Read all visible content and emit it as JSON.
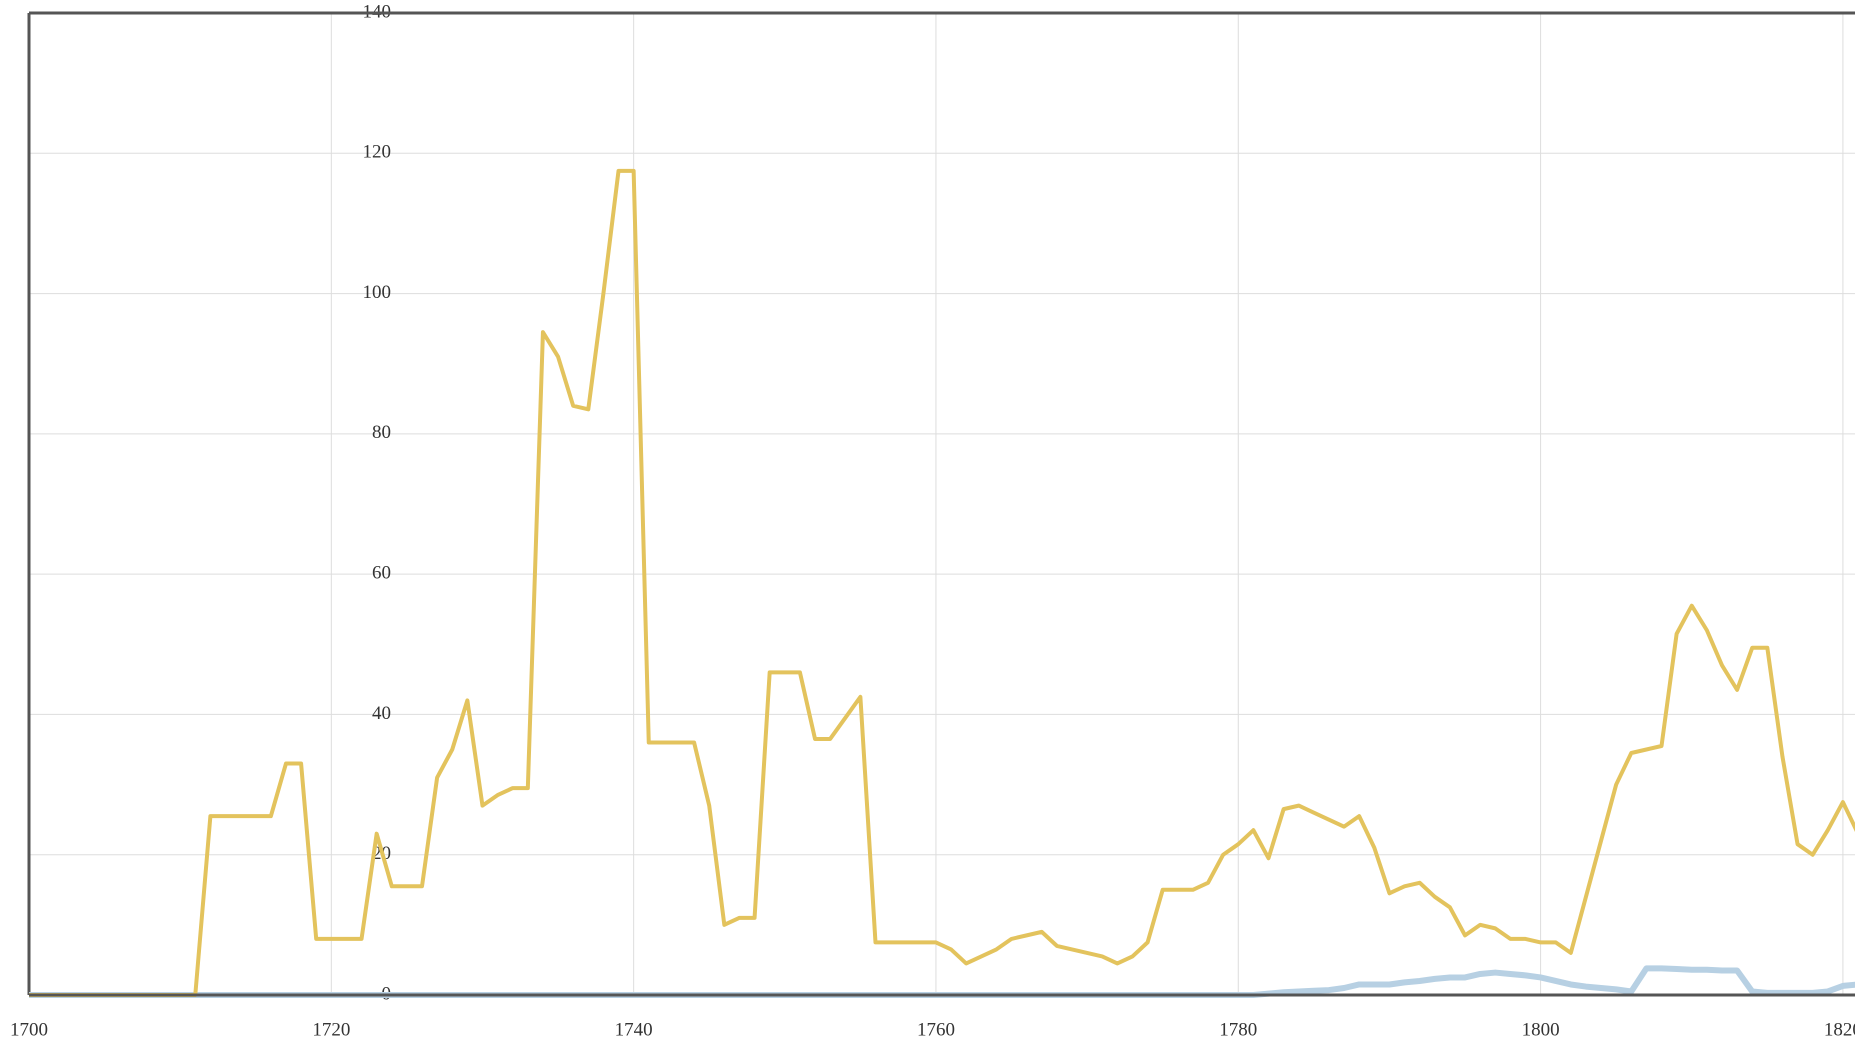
{
  "chart_data": {
    "type": "line",
    "x": [
      1700,
      1701,
      1702,
      1703,
      1704,
      1705,
      1706,
      1707,
      1708,
      1709,
      1710,
      1711,
      1712,
      1713,
      1714,
      1715,
      1716,
      1717,
      1718,
      1719,
      1720,
      1721,
      1722,
      1723,
      1724,
      1725,
      1726,
      1727,
      1728,
      1729,
      1730,
      1731,
      1732,
      1733,
      1734,
      1735,
      1736,
      1737,
      1738,
      1739,
      1740,
      1741,
      1742,
      1743,
      1744,
      1745,
      1746,
      1747,
      1748,
      1749,
      1750,
      1751,
      1752,
      1753,
      1754,
      1755,
      1756,
      1757,
      1758,
      1759,
      1760,
      1761,
      1762,
      1763,
      1764,
      1765,
      1766,
      1767,
      1768,
      1769,
      1770,
      1771,
      1772,
      1773,
      1774,
      1775,
      1776,
      1777,
      1778,
      1779,
      1780,
      1781,
      1782,
      1783,
      1784,
      1785,
      1786,
      1787,
      1788,
      1789,
      1790,
      1791,
      1792,
      1793,
      1794,
      1795,
      1796,
      1797,
      1798,
      1799,
      1800,
      1801,
      1802,
      1803,
      1804,
      1805,
      1806,
      1807,
      1808,
      1809,
      1810,
      1811,
      1812,
      1813,
      1814,
      1815,
      1816,
      1817,
      1818,
      1819,
      1820,
      1821
    ],
    "series": [
      {
        "color": "#e3c35d",
        "values": [
          0,
          0,
          0,
          0,
          0,
          0,
          0,
          0,
          0,
          0,
          0,
          0,
          25.5,
          25.5,
          25.5,
          25.5,
          25.5,
          33,
          33,
          8,
          8,
          8,
          8,
          23,
          15.5,
          15.5,
          15.5,
          31,
          35,
          42,
          27,
          28.5,
          29.5,
          29.5,
          94.5,
          91,
          84,
          83.5,
          100,
          117.5,
          117.5,
          36,
          36,
          36,
          36,
          27,
          10,
          11,
          11,
          46,
          46,
          46,
          36.5,
          36.5,
          39.5,
          42.5,
          7.5,
          7.5,
          7.5,
          7.5,
          7.5,
          6.5,
          4.5,
          5.5,
          6.5,
          8,
          8.5,
          9,
          7,
          6.5,
          6,
          5.5,
          4.5,
          5.5,
          7.5,
          15,
          15,
          15,
          16,
          20,
          21.5,
          23.5,
          19.5,
          26.5,
          27,
          26,
          25,
          24,
          25.5,
          21,
          14.5,
          15.5,
          16,
          14,
          12.5,
          8.5,
          10,
          9.5,
          8,
          8,
          7.5,
          7.5,
          6,
          14,
          22,
          30,
          34.5,
          35,
          35.5,
          51.5,
          55.5,
          52,
          47,
          43.5,
          49.5,
          49.5,
          34,
          21.5,
          20,
          23.5,
          27.5,
          23
        ]
      },
      {
        "color": "#b7d0e3",
        "values": [
          0,
          0,
          0,
          0,
          0,
          0,
          0,
          0,
          0,
          0,
          0,
          0,
          0,
          0,
          0,
          0,
          0,
          0,
          0,
          0,
          0,
          0,
          0,
          0,
          0,
          0,
          0,
          0,
          0,
          0,
          0,
          0,
          0,
          0,
          0,
          0,
          0,
          0,
          0,
          0,
          0,
          0,
          0,
          0,
          0,
          0,
          0,
          0,
          0,
          0,
          0,
          0,
          0,
          0,
          0,
          0,
          0,
          0,
          0,
          0,
          0,
          0,
          0,
          0,
          0,
          0,
          0,
          0,
          0,
          0,
          0,
          0,
          0,
          0,
          0,
          0,
          0,
          0,
          0,
          0,
          0,
          0,
          0.2,
          0.4,
          0.5,
          0.6,
          0.7,
          1,
          1.5,
          1.5,
          1.5,
          1.8,
          2,
          2.3,
          2.5,
          2.5,
          3,
          3.2,
          3,
          2.8,
          2.5,
          2,
          1.5,
          1.2,
          1,
          0.8,
          0.5,
          3.8,
          3.8,
          3.7,
          3.6,
          3.6,
          3.5,
          3.5,
          0.5,
          0.3,
          0.3,
          0.3,
          0.3,
          0.5,
          1.3,
          1.5
        ]
      }
    ],
    "xlim": [
      1700,
      1820.8
    ],
    "xticks": [
      1700,
      1720,
      1740,
      1760,
      1780,
      1800,
      1820
    ],
    "ylim": [
      0,
      140
    ],
    "yticks": [
      0,
      20,
      40,
      60,
      80,
      100,
      120,
      140
    ],
    "grid": true
  }
}
